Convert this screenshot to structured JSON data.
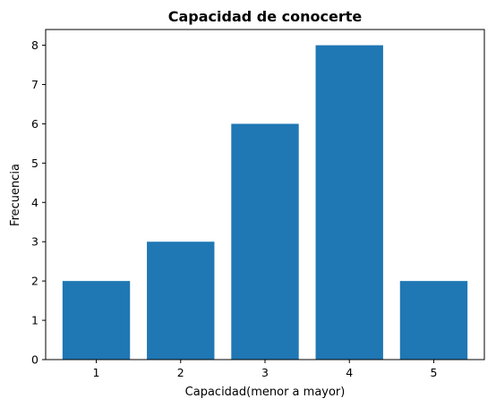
{
  "chart_data": {
    "type": "bar",
    "title": "Capacidad de conocerte",
    "xlabel": "Capacidad(menor a mayor)",
    "ylabel": "Frecuencia",
    "categories": [
      "1",
      "2",
      "3",
      "4",
      "5"
    ],
    "values": [
      2,
      3,
      6,
      8,
      2
    ],
    "ylim": [
      0,
      8.4
    ],
    "yticks": [
      0,
      1,
      2,
      3,
      4,
      5,
      6,
      7,
      8
    ],
    "grid": false,
    "legend": "none",
    "bar_color": "#1f77b4",
    "axis_color": "#000000"
  }
}
